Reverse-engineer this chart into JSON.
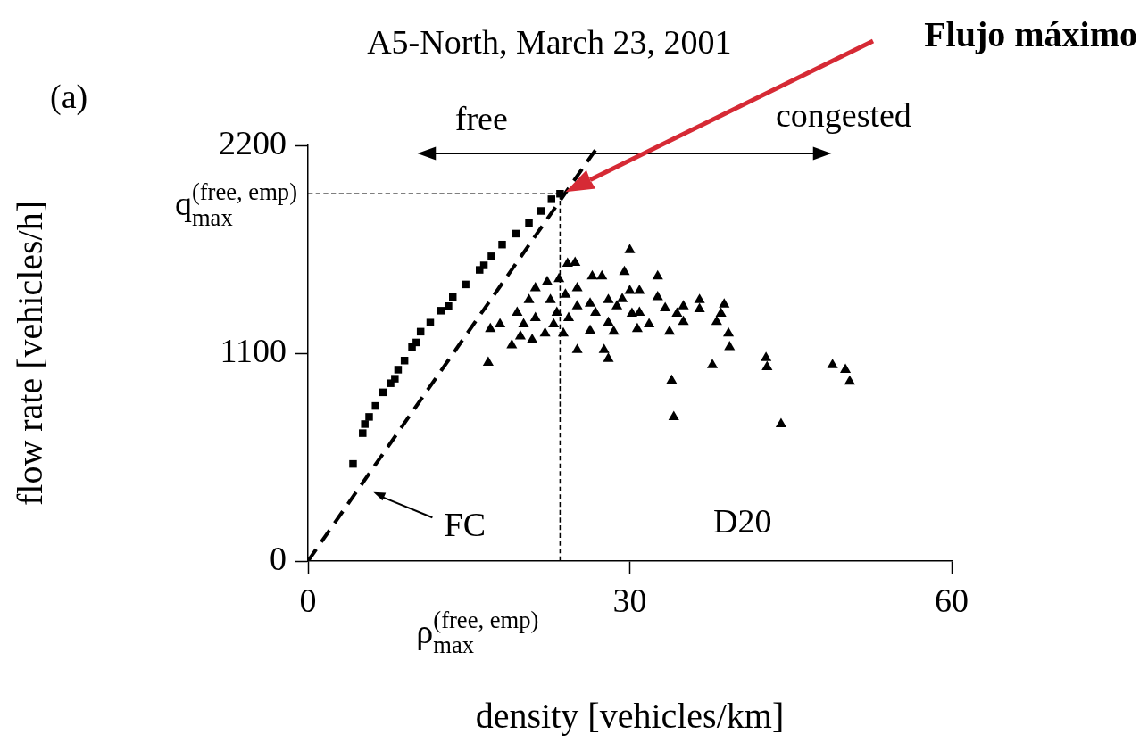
{
  "chart_data": {
    "type": "scatter",
    "title": "A5-North, March 23, 2001",
    "xlabel": "density [vehicles/km]",
    "ylabel": "flow rate [vehicles/h]",
    "xlim": [
      0,
      60
    ],
    "xticks": [
      0,
      30,
      60
    ],
    "ylim": [
      0,
      2200
    ],
    "yticks": [
      0,
      1100,
      2200
    ],
    "grid": false,
    "legend": false,
    "series": [
      {
        "type": "line",
        "color": "#000000",
        "line_style": "dashed",
        "marker": "none",
        "x": [
          0,
          27.1
        ],
        "values": [
          0,
          2200
        ]
      },
      {
        "type": "scatter",
        "color": "#000000",
        "marker": "square",
        "x": [
          4.2,
          5.1,
          5.3,
          5.7,
          6.3,
          7.0,
          7.7,
          8.1,
          8.4,
          9.0,
          9.7,
          10.1,
          10.5,
          11.4,
          12.4,
          13.1,
          13.5,
          14.7,
          16.0,
          16.4,
          17.1,
          18.1,
          19.4,
          20.6,
          21.7,
          22.7,
          23.5
        ],
        "values": [
          514,
          677,
          725,
          763,
          821,
          893,
          941,
          965,
          1013,
          1061,
          1133,
          1157,
          1214,
          1262,
          1325,
          1349,
          1397,
          1464,
          1541,
          1565,
          1613,
          1675,
          1733,
          1790,
          1853,
          1915,
          1944
        ]
      },
      {
        "type": "scatter",
        "color": "#000000",
        "marker": "triangle",
        "x": [
          30.0,
          29.5,
          32.6,
          24.9,
          24.2,
          27.4,
          26.5,
          30.9,
          30.0,
          32.6,
          33.3,
          35.0,
          36.5,
          36.5,
          38.8,
          38.5,
          38.1,
          35.0,
          34.4,
          33.7,
          39.2,
          39.3,
          31.8,
          30.7,
          30.2,
          30.9,
          42.7,
          42.8,
          37.7,
          48.9,
          50.1,
          50.5,
          33.9,
          34.1,
          44.1,
          16.8,
          17.0,
          17.9,
          19.0,
          28.0,
          27.6,
          25.1,
          28.5,
          28.0,
          26.3,
          26.8,
          26.3,
          28.0,
          29.3,
          28.8,
          21.2,
          20.6,
          22.3,
          23.4,
          22.6,
          24.0,
          21.2,
          20.1,
          22.1,
          23.8,
          25.1,
          25.1,
          20.9,
          19.8,
          23.2,
          24.3,
          19.5,
          22.9
        ],
        "values": [
          1646,
          1531,
          1507,
          1579,
          1574,
          1507,
          1507,
          1430,
          1430,
          1397,
          1339,
          1349,
          1382,
          1334,
          1358,
          1310,
          1267,
          1267,
          1310,
          1214,
          1205,
          1133,
          1253,
          1229,
          1310,
          1315,
          1075,
          1027,
          1037,
          1037,
          1013,
          950,
          955,
          763,
          725,
          1051,
          1229,
          1253,
          1142,
          1070,
          1118,
          1118,
          1214,
          1262,
          1219,
          1315,
          1363,
          1382,
          1387,
          1349,
          1445,
          1382,
          1478,
          1493,
          1382,
          1411,
          1286,
          1253,
          1205,
          1205,
          1349,
          1445,
          1171,
          1190,
          1315,
          1286,
          1315,
          1253
        ]
      }
    ],
    "ref_lines": [
      {
        "axis": "y",
        "value": 1944,
        "label": "q$_{max}$$^{(free, emp)}$",
        "line_style": "dashed",
        "color": "#000000"
      },
      {
        "axis": "x",
        "value": 23.5,
        "label": "ρ$_{max}$$^{(free, emp)}$",
        "line_style": "dashed",
        "color": "#000000"
      }
    ],
    "annotations": [
      "(a)",
      "free",
      "congested",
      "D20",
      "FC",
      "Flujo máximo"
    ]
  }
}
